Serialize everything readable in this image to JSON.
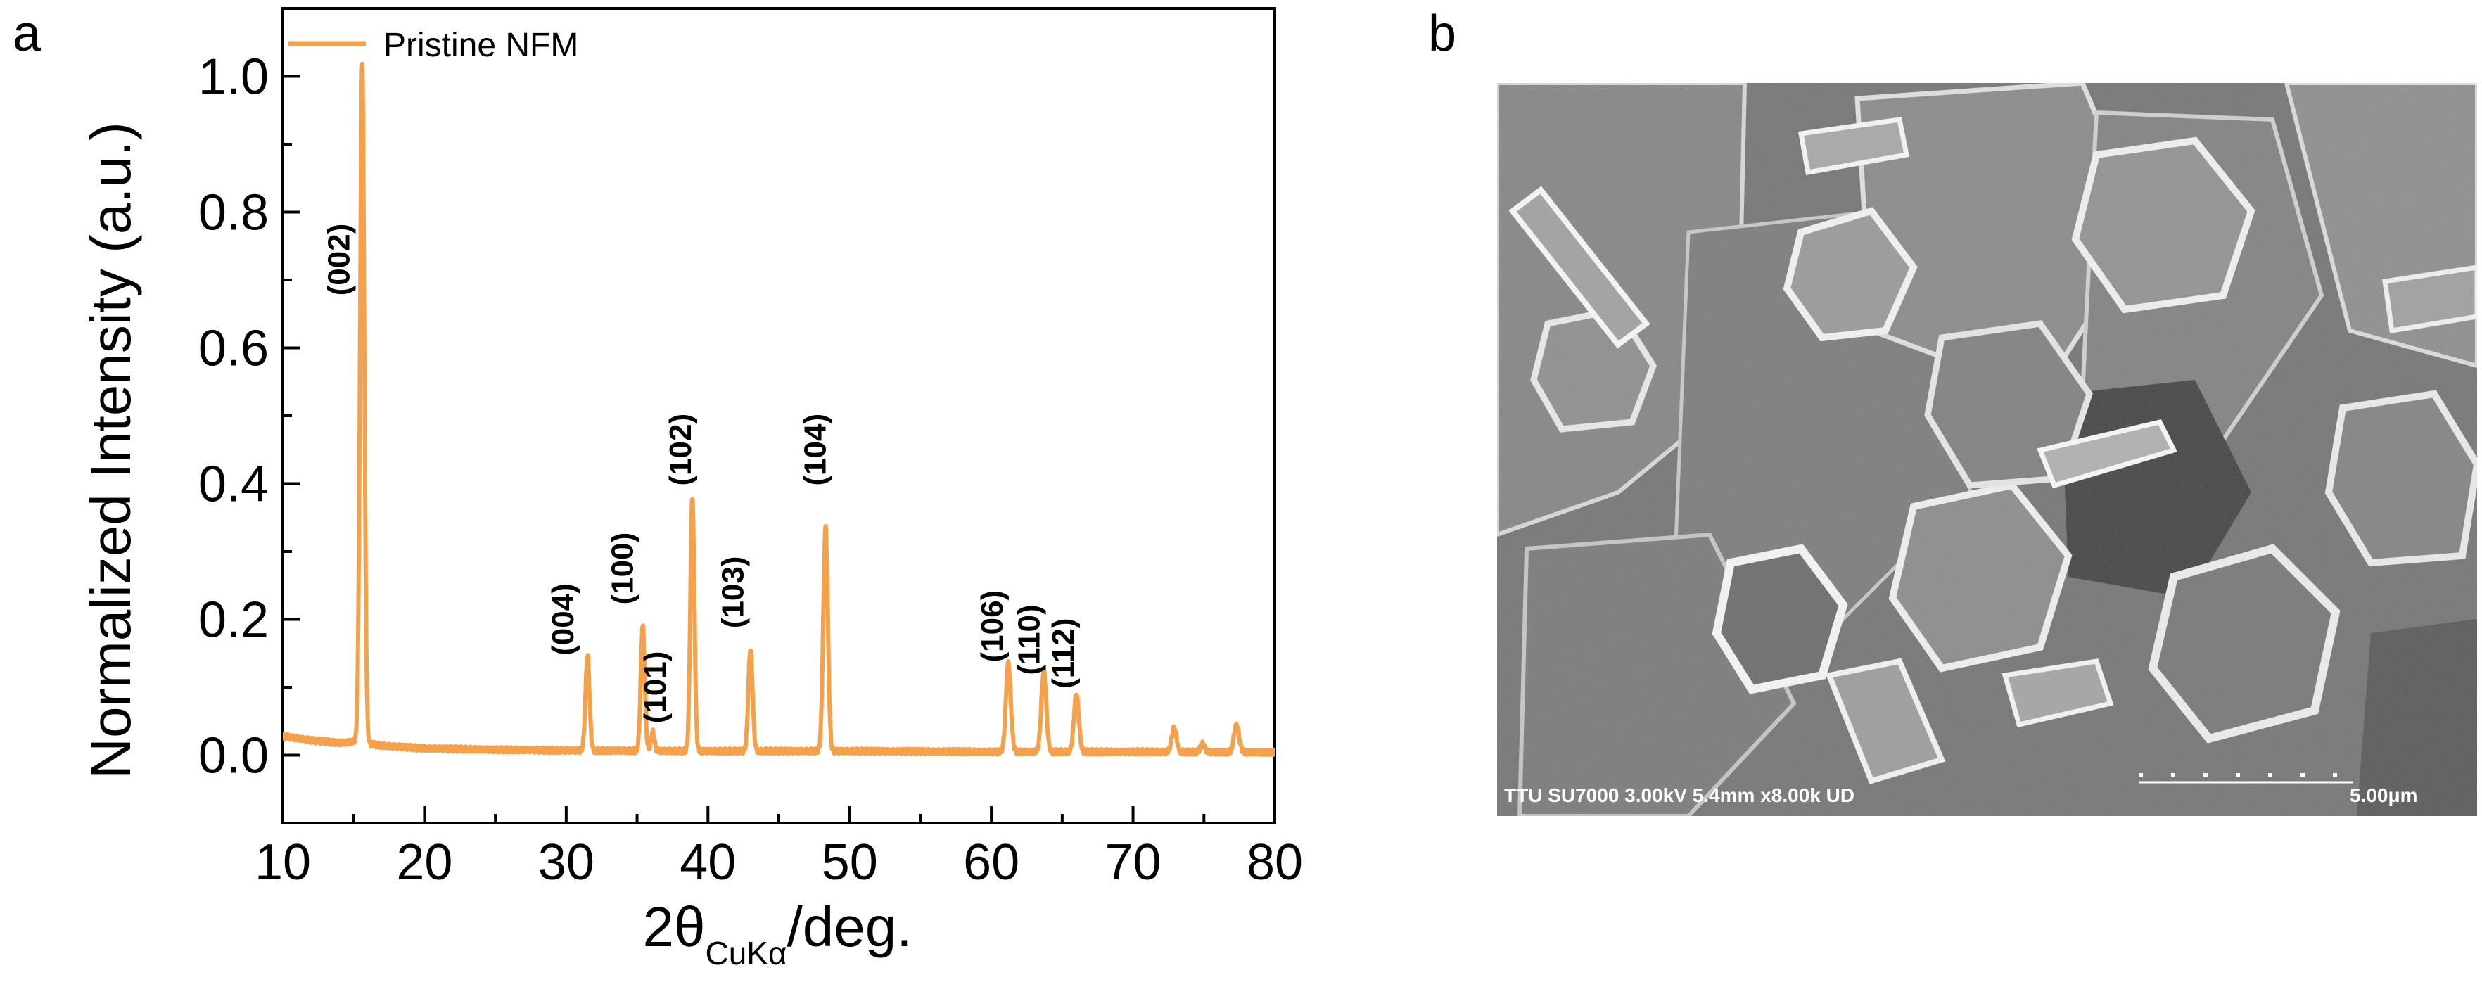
{
  "panels": {
    "a_label": "a",
    "b_label": "b"
  },
  "colors": {
    "series": "#F5A04A",
    "axis": "#000000",
    "sem_text": "#ffffff"
  },
  "chart_data": {
    "type": "line",
    "title": "",
    "xlabel_main": "2θ",
    "xlabel_sub": "CuKα",
    "xlabel_suffix": "/deg.",
    "ylabel": "Normalized Intensity (a.u.)",
    "xlim": [
      10,
      80
    ],
    "ylim": [
      -0.1,
      1.1
    ],
    "xticks": [
      10,
      20,
      30,
      40,
      50,
      60,
      70,
      80
    ],
    "yticks": [
      0.0,
      0.2,
      0.4,
      0.6,
      0.8,
      1.0
    ],
    "xtick_labels": [
      "10",
      "20",
      "30",
      "40",
      "50",
      "60",
      "70",
      "80"
    ],
    "ytick_labels": [
      "0.0",
      "0.2",
      "0.4",
      "0.6",
      "0.8",
      "1.0"
    ],
    "legend": {
      "position": "top-left",
      "entries": [
        "Pristine NFM"
      ]
    },
    "grid": false,
    "series": [
      {
        "name": "Pristine NFM",
        "baseline": [
          [
            10,
            0.028
          ],
          [
            12,
            0.022
          ],
          [
            14,
            0.018
          ],
          [
            15,
            0.02
          ],
          [
            17,
            0.014
          ],
          [
            20,
            0.01
          ],
          [
            25,
            0.008
          ],
          [
            30,
            0.007
          ],
          [
            40,
            0.006
          ],
          [
            50,
            0.006
          ],
          [
            60,
            0.005
          ],
          [
            70,
            0.005
          ],
          [
            80,
            0.004
          ]
        ],
        "peaks": [
          {
            "center": 15.6,
            "height": 1.0,
            "width": 0.15
          },
          {
            "center": 31.5,
            "height": 0.14,
            "width": 0.14
          },
          {
            "center": 35.4,
            "height": 0.185,
            "width": 0.14
          },
          {
            "center": 36.1,
            "height": 0.028,
            "width": 0.12
          },
          {
            "center": 38.9,
            "height": 0.375,
            "width": 0.14
          },
          {
            "center": 43.0,
            "height": 0.15,
            "width": 0.15
          },
          {
            "center": 48.3,
            "height": 0.33,
            "width": 0.16
          },
          {
            "center": 61.2,
            "height": 0.13,
            "width": 0.17
          },
          {
            "center": 63.7,
            "height": 0.12,
            "width": 0.17
          },
          {
            "center": 66.0,
            "height": 0.085,
            "width": 0.17
          },
          {
            "center": 72.9,
            "height": 0.035,
            "width": 0.17
          },
          {
            "center": 74.9,
            "height": 0.012,
            "width": 0.15
          },
          {
            "center": 77.3,
            "height": 0.04,
            "width": 0.18
          }
        ]
      }
    ],
    "annotations": [
      {
        "text": "(002)",
        "x": 14.7,
        "y": 0.73
      },
      {
        "text": "(004)",
        "x": 30.5,
        "y": 0.2
      },
      {
        "text": "(100)",
        "x": 34.7,
        "y": 0.275
      },
      {
        "text": "(101)",
        "x": 37.0,
        "y": 0.1
      },
      {
        "text": "(102)",
        "x": 38.8,
        "y": 0.45
      },
      {
        "text": "(103)",
        "x": 42.5,
        "y": 0.24
      },
      {
        "text": "(104)",
        "x": 48.3,
        "y": 0.45
      },
      {
        "text": "(106)",
        "x": 60.8,
        "y": 0.19
      },
      {
        "text": "(110)",
        "x": 63.4,
        "y": 0.17
      },
      {
        "text": "(112)",
        "x": 65.8,
        "y": 0.15
      }
    ]
  },
  "sem_image": {
    "info_text": "TTU SU7000 3.00kV 5.4mm x8.00k UD",
    "scale_label": "5.00μm"
  }
}
